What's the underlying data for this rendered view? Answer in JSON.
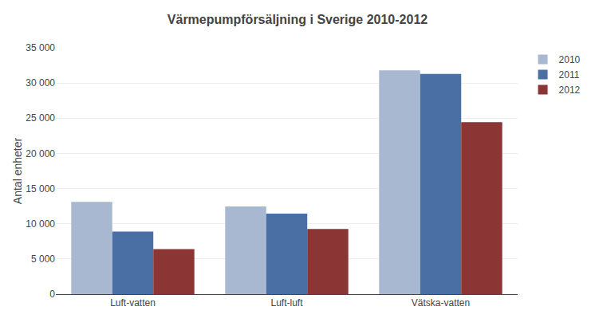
{
  "chart_data": {
    "type": "bar",
    "title": "Värmepumpförsäljning i Sverige 2010-2012",
    "categories": [
      "Luft-vatten",
      "Luft-luft",
      "Vätska-vatten"
    ],
    "series": [
      {
        "name": "2010",
        "color": "#a8b8d0",
        "values": [
          13100,
          12450,
          31800
        ]
      },
      {
        "name": "2011",
        "color": "#4a6fa5",
        "values": [
          8900,
          11450,
          31300
        ]
      },
      {
        "name": "2012",
        "color": "#8b3535",
        "values": [
          6400,
          9250,
          24450
        ]
      }
    ],
    "ylabel": "Antal enheter",
    "ylim": [
      0,
      35000
    ],
    "yticks": [
      0,
      {
        "value": 5000,
        "label": "5 000"
      },
      {
        "value": 10000,
        "label": "10 000"
      },
      {
        "value": 15000,
        "label": "15 000"
      },
      {
        "value": 20000,
        "label": "20 000"
      },
      {
        "value": 25000,
        "label": "25 000"
      },
      {
        "value": 30000,
        "label": "30 000"
      },
      {
        "value": 35000,
        "label": "35 000"
      }
    ],
    "grid": true,
    "legend": "right"
  }
}
